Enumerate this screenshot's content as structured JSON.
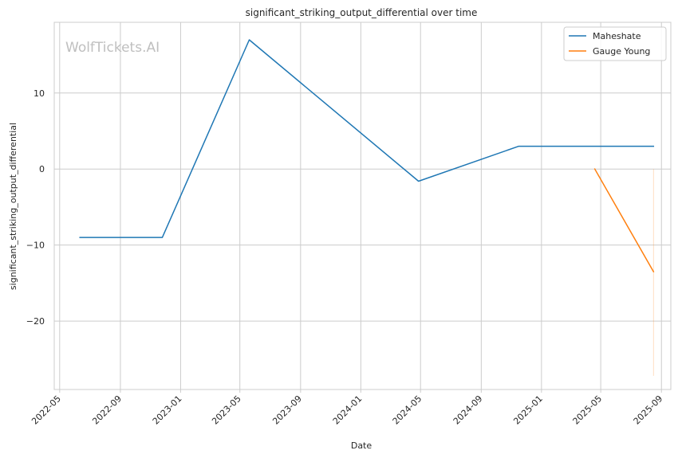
{
  "chart_data": {
    "type": "line",
    "title": "significant_striking_output_differential over time",
    "xlabel": "Date",
    "ylabel": "significant_striking_output_differential",
    "watermark": "WolfTickets.AI",
    "x_ticks": [
      "2022-05",
      "2022-09",
      "2023-01",
      "2023-05",
      "2023-09",
      "2024-01",
      "2024-05",
      "2024-09",
      "2025-01",
      "2025-05",
      "2025-09"
    ],
    "y_ticks": [
      -20,
      -10,
      0,
      10
    ],
    "xlim": [
      "2022-04-20",
      "2025-09-20"
    ],
    "ylim": [
      -29,
      19.3
    ],
    "grid": true,
    "legend_position": "top-right",
    "series": [
      {
        "name": "Maheshate",
        "color": "#1f77b4",
        "x": [
          "2022-06-11",
          "2022-11-25",
          "2023-05-20",
          "2024-04-27",
          "2024-11-16",
          "2025-08-16"
        ],
        "y": [
          -9,
          -9,
          17,
          -1.6,
          3,
          3
        ]
      },
      {
        "name": "Gauge Young",
        "color": "#ff7f0e",
        "x": [
          "2025-04-19",
          "2025-08-16"
        ],
        "y": [
          0,
          -13.5
        ]
      }
    ],
    "annotations": [
      {
        "type": "faint-vertical-line",
        "color": "#ff7f0e",
        "x": "2025-08-16",
        "y_from": 0,
        "y_to": -27.2
      }
    ]
  }
}
